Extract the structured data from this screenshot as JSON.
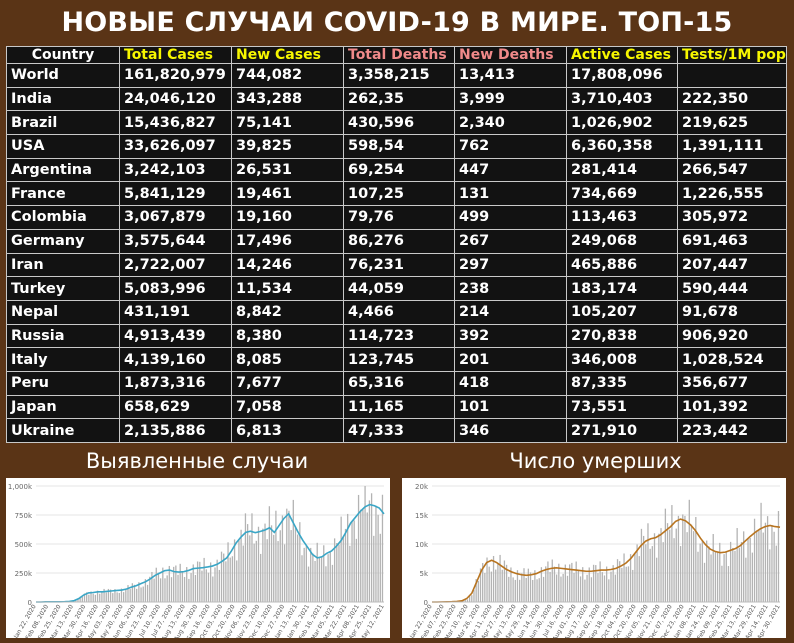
{
  "title": "НОВЫЕ СЛУЧАИ COVID-19 В МИРЕ. ТОП-15",
  "colors": {
    "background": "#5a3416",
    "table_bg": "#121212",
    "header_yellow": "#f7f700",
    "header_pink": "#f08a8a",
    "cases_line": "#3aa6c6",
    "deaths_line": "#b8741f",
    "bars": "#b3b3b3"
  },
  "table": {
    "headers": [
      "Country",
      "Total Cases",
      "New Cases",
      "Total Deaths",
      "New Deaths",
      "Active Cases",
      "Tests/1M pop"
    ],
    "rows": [
      [
        "World",
        "161,820,979",
        "744,082",
        "3,358,215",
        "13,413",
        "17,808,096",
        ""
      ],
      [
        "India",
        "24,046,120",
        "343,288",
        "262,35",
        "3,999",
        "3,710,403",
        "222,350"
      ],
      [
        "Brazil",
        "15,436,827",
        "75,141",
        "430,596",
        "2,340",
        "1,026,902",
        "219,625"
      ],
      [
        "USA",
        "33,626,097",
        "39,825",
        "598,54",
        "762",
        "6,360,358",
        "1,391,111"
      ],
      [
        "Argentina",
        "3,242,103",
        "26,531",
        "69,254",
        "447",
        "281,414",
        "266,547"
      ],
      [
        "France",
        "5,841,129",
        "19,461",
        "107,25",
        "131",
        "734,669",
        "1,226,555"
      ],
      [
        "Colombia",
        "3,067,879",
        "19,160",
        "79,76",
        "499",
        "113,463",
        "305,972"
      ],
      [
        "Germany",
        "3,575,644",
        "17,496",
        "86,276",
        "267",
        "249,068",
        "691,463"
      ],
      [
        "Iran",
        "2,722,007",
        "14,246",
        "76,231",
        "297",
        "465,886",
        "207,447"
      ],
      [
        "Turkey",
        "5,083,996",
        "11,534",
        "44,059",
        "238",
        "183,174",
        "590,444"
      ],
      [
        "Nepal",
        "431,191",
        "8,842",
        "4,466",
        "214",
        "105,207",
        "91,678"
      ],
      [
        "Russia",
        "4,913,439",
        "8,380",
        "114,723",
        "392",
        "270,838",
        "906,920"
      ],
      [
        "Italy",
        "4,139,160",
        "8,085",
        "123,745",
        "201",
        "346,008",
        "1,028,524"
      ],
      [
        "Peru",
        "1,873,316",
        "7,677",
        "65,316",
        "418",
        "87,335",
        "356,677"
      ],
      [
        "Japan",
        "658,629",
        "7,058",
        "11,165",
        "101",
        "73,551",
        "101,392"
      ],
      [
        "Ukraine",
        "2,135,886",
        "6,813",
        "47,333",
        "346",
        "271,910",
        "223,442"
      ]
    ]
  },
  "chart_titles": {
    "cases": "Выявленные случаи",
    "deaths": "Число умерших"
  },
  "chart_data": [
    {
      "type": "bar",
      "overlay": "line",
      "yticks": [
        "0",
        "250k",
        "500k",
        "750k",
        "1,000k"
      ],
      "ylim": [
        0,
        1000000
      ],
      "xticks": [
        "Jan 22, 2020",
        "Feb 08, 2020",
        "Feb 25, 2020",
        "Mar 13, 2020",
        "Mar 30, 2020",
        "Apr 16, 2020",
        "May 03, 2020",
        "May 20, 2020",
        "Jun 06, 2020",
        "Jun 23, 2020",
        "Jul 10, 2020",
        "Jul 27, 2020",
        "Aug 13, 2020",
        "Aug 30, 2020",
        "Sep 16, 2020",
        "Oct 03, 2020",
        "Oct 20, 2020",
        "Nov 06, 2020",
        "Nov 23, 2020",
        "Dec 10, 2020",
        "Dec 27, 2020",
        "Jan 13, 2021",
        "Jan 30, 2021",
        "Feb 16, 2021",
        "Mar 05, 2021",
        "Mar 22, 2021",
        "Apr 08, 2021",
        "Apr 25, 2021",
        "May 12, 2021"
      ],
      "series": [
        {
          "kind": "line",
          "values": [
            0,
            100,
            2000,
            1500,
            2000,
            2000,
            3000,
            5000,
            12000,
            30000,
            60000,
            78000,
            82000,
            88000,
            88000,
            92000,
            96000,
            100000,
            103000,
            112000,
            128000,
            140000,
            158000,
            175000,
            200000,
            230000,
            250000,
            270000,
            275000,
            262000,
            258000,
            262000,
            272000,
            288000,
            292000,
            296000,
            302000,
            310000,
            325000,
            350000,
            380000,
            440000,
            510000,
            560000,
            600000,
            610000,
            598000,
            608000,
            620000,
            640000,
            600000,
            660000,
            720000,
            760000,
            680000,
            600000,
            530000,
            470000,
            410000,
            380000,
            390000,
            420000,
            440000,
            480000,
            530000,
            600000,
            680000,
            730000,
            780000,
            820000,
            840000,
            830000,
            810000,
            760000
          ]
        }
      ]
    },
    {
      "type": "bar",
      "overlay": "line",
      "yticks": [
        "0",
        "5k",
        "10k",
        "15k",
        "20k"
      ],
      "ylim": [
        0,
        20000
      ],
      "xticks": [
        "Jan 22, 2020",
        "Feb 07, 2020",
        "Feb 23, 2020",
        "Mar 10, 2020",
        "Mar 26, 2020",
        "Apr 11, 2020",
        "Apr 27, 2020",
        "May 13, 2020",
        "May 29, 2020",
        "Jun 14, 2020",
        "Jun 30, 2020",
        "Jul 16, 2020",
        "Aug 01, 2020",
        "Aug 17, 2020",
        "Sep 02, 2020",
        "Sep 18, 2020",
        "Oct 04, 2020",
        "Oct 20, 2020",
        "Nov 05, 2020",
        "Nov 21, 2020",
        "Dec 07, 2020",
        "Dec 23, 2020",
        "Jan 08, 2021",
        "Jan 24, 2021",
        "Feb 09, 2021",
        "Feb 25, 2021",
        "Mar 13, 2021",
        "Mar 29, 2021",
        "Apr 14, 2021",
        "Apr 30, 2021"
      ],
      "series": [
        {
          "kind": "line",
          "values": [
            0,
            0,
            20,
            40,
            60,
            100,
            200,
            600,
            1500,
            3500,
            5500,
            6800,
            7200,
            6800,
            6200,
            5600,
            5200,
            4900,
            4700,
            4600,
            4700,
            4900,
            5300,
            5600,
            5800,
            5900,
            5800,
            5700,
            5600,
            5500,
            5400,
            5300,
            5300,
            5400,
            5500,
            5500,
            5600,
            5800,
            6200,
            6700,
            7500,
            8600,
            9700,
            10500,
            10900,
            11100,
            11600,
            12300,
            13000,
            13900,
            14300,
            14000,
            13300,
            12300,
            11000,
            9900,
            9100,
            8700,
            8500,
            8600,
            8900,
            9200,
            9700,
            10500,
            11300,
            12000,
            12600,
            13000,
            13200,
            13000,
            12900
          ]
        }
      ]
    }
  ]
}
